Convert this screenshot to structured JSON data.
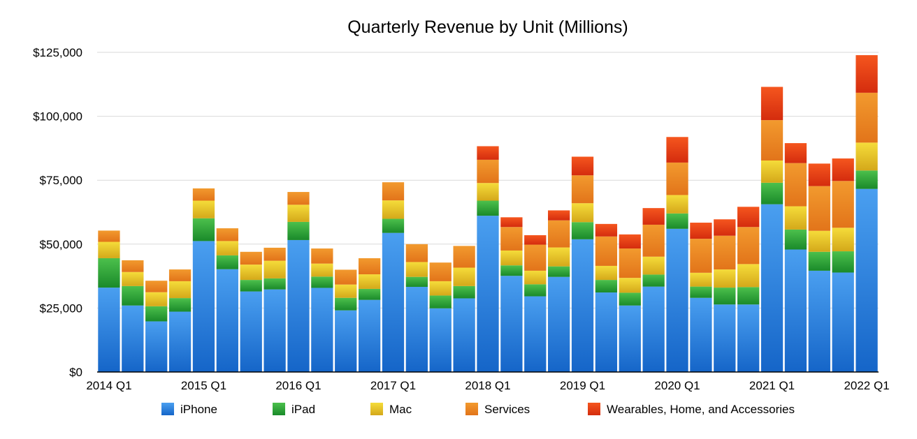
{
  "chart_data": {
    "type": "bar",
    "stacked": true,
    "title": "Quarterly Revenue by Unit (Millions)",
    "xlabel": "",
    "ylabel": "",
    "ylim": [
      0,
      125000
    ],
    "yticks": [
      {
        "value": 0,
        "label": "$0"
      },
      {
        "value": 25000,
        "label": "$25,000"
      },
      {
        "value": 50000,
        "label": "$50,000"
      },
      {
        "value": 75000,
        "label": "$75,000"
      },
      {
        "value": 100000,
        "label": "$100,000"
      },
      {
        "value": 125000,
        "label": "$125,000"
      }
    ],
    "grid": true,
    "legend_position": "bottom",
    "categories": [
      "2014 Q1",
      "2014 Q2",
      "2014 Q3",
      "2014 Q4",
      "2015 Q1",
      "2015 Q2",
      "2015 Q3",
      "2015 Q4",
      "2016 Q1",
      "2016 Q2",
      "2016 Q3",
      "2016 Q4",
      "2017 Q1",
      "2017 Q2",
      "2017 Q3",
      "2017 Q4",
      "2018 Q1",
      "2018 Q2",
      "2018 Q3",
      "2018 Q4",
      "2019 Q1",
      "2019 Q2",
      "2019 Q3",
      "2019 Q4",
      "2020 Q1",
      "2020 Q2",
      "2020 Q3",
      "2020 Q4",
      "2021 Q1",
      "2021 Q2",
      "2021 Q3",
      "2021 Q4",
      "2022 Q1"
    ],
    "x_tick_labels": [
      {
        "index": 0,
        "label": "2014 Q1"
      },
      {
        "index": 4,
        "label": "2015 Q1"
      },
      {
        "index": 8,
        "label": "2016 Q1"
      },
      {
        "index": 12,
        "label": "2017 Q1"
      },
      {
        "index": 16,
        "label": "2018 Q1"
      },
      {
        "index": 20,
        "label": "2019 Q1"
      },
      {
        "index": 24,
        "label": "2020 Q1"
      },
      {
        "index": 28,
        "label": "2021 Q1"
      },
      {
        "index": 32,
        "label": "2022 Q1"
      }
    ],
    "series": [
      {
        "name": "iPhone",
        "color_top": "#4a9ff0",
        "color_bottom": "#1565c8",
        "values": [
          33000,
          26000,
          19800,
          23600,
          51200,
          40200,
          31500,
          32300,
          51600,
          32900,
          24100,
          28200,
          54400,
          33300,
          24900,
          28800,
          61100,
          37600,
          29600,
          37200,
          51900,
          31100,
          26000,
          33400,
          56000,
          29000,
          26400,
          26400,
          65600,
          47900,
          39600,
          38900,
          71600
        ]
      },
      {
        "name": "iPad",
        "color_top": "#4cc04c",
        "color_bottom": "#1a8a2a",
        "values": [
          11500,
          7600,
          5900,
          5300,
          8900,
          5400,
          4500,
          4300,
          7100,
          4400,
          4900,
          4300,
          5500,
          3900,
          5000,
          4800,
          5900,
          4100,
          4700,
          4100,
          6700,
          4900,
          5000,
          4700,
          6000,
          4400,
          6600,
          6800,
          8400,
          7800,
          7400,
          8300,
          7200
        ]
      },
      {
        "name": "Mac",
        "color_top": "#f5dc3a",
        "color_bottom": "#d4a81a",
        "values": [
          6400,
          5500,
          5500,
          6600,
          6900,
          5600,
          6000,
          6900,
          6700,
          5100,
          5200,
          5700,
          7200,
          5800,
          5600,
          7200,
          6900,
          5800,
          5300,
          7400,
          7400,
          5500,
          5800,
          7000,
          7200,
          5400,
          7100,
          9000,
          8700,
          9100,
          8200,
          9200,
          10900
        ]
      },
      {
        "name": "Services",
        "color_top": "#f29a2e",
        "color_bottom": "#e2741a",
        "values": [
          4400,
          4600,
          4500,
          4600,
          4800,
          5000,
          5000,
          5100,
          5000,
          5900,
          5800,
          6300,
          7100,
          7000,
          7300,
          8500,
          9100,
          9200,
          10200,
          10600,
          10900,
          11500,
          11500,
          12500,
          12700,
          13300,
          13200,
          14500,
          15800,
          16900,
          17500,
          18300,
          19500
        ]
      },
      {
        "name": "Wearables, Home, and Accessories",
        "color_top": "#f5561e",
        "color_bottom": "#d42c0e",
        "values": [
          0,
          0,
          0,
          0,
          0,
          0,
          0,
          0,
          0,
          0,
          0,
          0,
          0,
          0,
          0,
          0,
          5300,
          3800,
          3700,
          3900,
          7300,
          4900,
          5500,
          6500,
          10000,
          6300,
          6400,
          7900,
          13000,
          7800,
          8800,
          8800,
          14700
        ]
      }
    ]
  }
}
